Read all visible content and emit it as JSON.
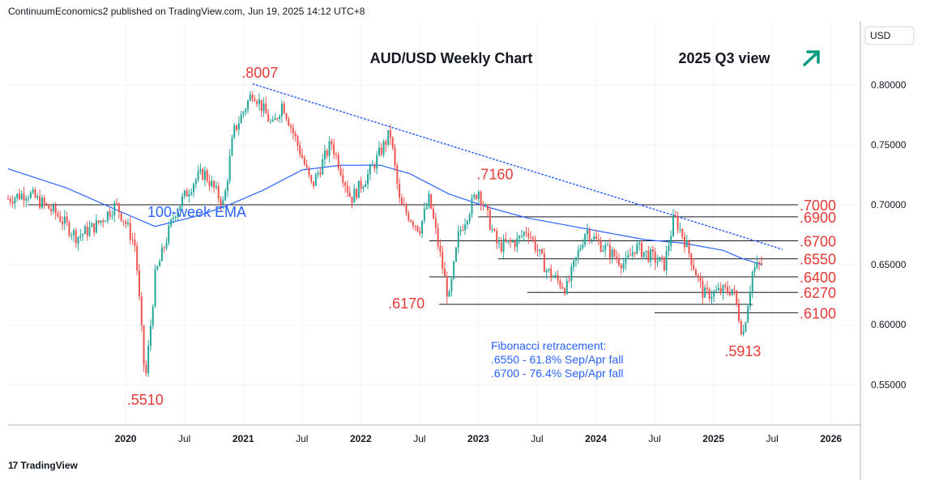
{
  "header": {
    "attribution": "ContinuumEconomics2 published on TradingView.com, Jun 19, 2025 14:12 UTC+8"
  },
  "footer": {
    "brand": "TradingView",
    "logo_text": "17"
  },
  "currency": "USD",
  "colors": {
    "up": "#26a69a",
    "down": "#ef5350",
    "level": "#e53935",
    "ema": "#2962ff",
    "arrow": "#089981"
  },
  "chart_data": {
    "type": "candlestick",
    "title": "AUD/USD Weekly Chart",
    "subtitle": "2025 Q3 view",
    "outlook_icon": "up-arrow-icon",
    "x_tick_labels": [
      "2020",
      "Jul",
      "2021",
      "Jul",
      "2022",
      "Jul",
      "2023",
      "Jul",
      "2024",
      "Jul",
      "2025",
      "Jul",
      "2026"
    ],
    "x_ticks": [
      "2020-01",
      "2020-07",
      "2021-01",
      "2021-07",
      "2022-01",
      "2022-07",
      "2023-01",
      "2023-07",
      "2024-01",
      "2024-07",
      "2025-01",
      "2025-07",
      "2026-01"
    ],
    "x_range": [
      "2019-01",
      "2026-04"
    ],
    "y_ticks": [
      "0.55000",
      "0.60000",
      "0.65000",
      "0.70000",
      "0.75000",
      "0.80000"
    ],
    "y_range": [
      0.5165,
      0.8525
    ],
    "trendline": {
      "from": [
        "2021-02",
        0.8007
      ],
      "to": [
        "2025-08",
        0.663
      ],
      "style": "dotted"
    },
    "ema_label": "100-week EMA",
    "ema": [
      [
        "2019-01",
        0.73
      ],
      [
        "2019-07",
        0.714
      ],
      [
        "2019-12",
        0.696
      ],
      [
        "2020-04",
        0.682
      ],
      [
        "2020-08",
        0.69
      ],
      [
        "2020-11",
        0.698
      ],
      [
        "2021-03",
        0.712
      ],
      [
        "2021-07",
        0.729
      ],
      [
        "2021-11",
        0.733
      ],
      [
        "2022-03",
        0.733
      ],
      [
        "2022-06",
        0.726
      ],
      [
        "2022-10",
        0.709
      ],
      [
        "2023-02",
        0.698
      ],
      [
        "2023-06",
        0.689
      ],
      [
        "2023-10",
        0.683
      ],
      [
        "2024-02",
        0.677
      ],
      [
        "2024-06",
        0.671
      ],
      [
        "2024-10",
        0.668
      ],
      [
        "2025-02",
        0.662
      ],
      [
        "2025-04",
        0.655
      ],
      [
        "2025-06",
        0.65
      ]
    ],
    "levels": [
      {
        "label": ".7000",
        "value": 0.7,
        "from": "2019-03"
      },
      {
        "label": ".6900",
        "value": 0.69,
        "from": "2023-01"
      },
      {
        "label": ".6700",
        "value": 0.67,
        "from": "2022-08"
      },
      {
        "label": ".6550",
        "value": 0.655,
        "from": "2023-03"
      },
      {
        "label": ".6400",
        "value": 0.64,
        "from": "2022-08"
      },
      {
        "label": ".6270",
        "value": 0.627,
        "from": "2023-06"
      },
      {
        "label": ".6100",
        "value": 0.61,
        "from": "2024-07"
      }
    ],
    "extra_lines": [
      {
        "value": 0.617,
        "from": "2022-09",
        "to": "2025-05"
      }
    ],
    "annotations": [
      {
        "label": ".8007",
        "at": [
          "2021-01",
          0.8007
        ],
        "pos": "above"
      },
      {
        "label": ".7160",
        "at": [
          "2023-01",
          0.716
        ],
        "pos": "above"
      },
      {
        "label": ".6170",
        "at": [
          "2022-10",
          0.617
        ],
        "pos": "left"
      },
      {
        "label": ".5510",
        "at": [
          "2020-03",
          0.551
        ],
        "pos": "below"
      },
      {
        "label": ".5913",
        "at": [
          "2025-04",
          0.5913
        ],
        "pos": "below"
      }
    ],
    "fib_note": [
      "Fibonacci retracement:",
      ".6550 - 61.8% Sep/Apr fall",
      ".6700 - 76.4% Sep/Apr fall"
    ],
    "price_path": [
      [
        "2019-01",
        0.705
      ],
      [
        "2019-03",
        0.71
      ],
      [
        "2019-06",
        0.692
      ],
      [
        "2019-08",
        0.673
      ],
      [
        "2019-10",
        0.683
      ],
      [
        "2019-12",
        0.7
      ],
      [
        "2020-01",
        0.685
      ],
      [
        "2020-02",
        0.665
      ],
      [
        "2020-03",
        0.551
      ],
      [
        "2020-04",
        0.64
      ],
      [
        "2020-06",
        0.694
      ],
      [
        "2020-08",
        0.72
      ],
      [
        "2020-09",
        0.727
      ],
      [
        "2020-11",
        0.7
      ],
      [
        "2020-12",
        0.76
      ],
      [
        "2021-02",
        0.795
      ],
      [
        "2021-04",
        0.765
      ],
      [
        "2021-05",
        0.785
      ],
      [
        "2021-07",
        0.74
      ],
      [
        "2021-08",
        0.715
      ],
      [
        "2021-10",
        0.752
      ],
      [
        "2021-12",
        0.705
      ],
      [
        "2022-02",
        0.728
      ],
      [
        "2022-04",
        0.76
      ],
      [
        "2022-05",
        0.7
      ],
      [
        "2022-07",
        0.68
      ],
      [
        "2022-08",
        0.705
      ],
      [
        "2022-10",
        0.62
      ],
      [
        "2022-11",
        0.676
      ],
      [
        "2023-01",
        0.713
      ],
      [
        "2023-03",
        0.665
      ],
      [
        "2023-05",
        0.67
      ],
      [
        "2023-06",
        0.68
      ],
      [
        "2023-08",
        0.645
      ],
      [
        "2023-10",
        0.63
      ],
      [
        "2023-12",
        0.68
      ],
      [
        "2024-01",
        0.67
      ],
      [
        "2024-04",
        0.65
      ],
      [
        "2024-05",
        0.665
      ],
      [
        "2024-08",
        0.65
      ],
      [
        "2024-09",
        0.69
      ],
      [
        "2024-10",
        0.672
      ],
      [
        "2024-12",
        0.625
      ],
      [
        "2025-02",
        0.628
      ],
      [
        "2025-03",
        0.63
      ],
      [
        "2025-04",
        0.591
      ],
      [
        "2025-05",
        0.645
      ],
      [
        "2025-06",
        0.652
      ]
    ]
  }
}
